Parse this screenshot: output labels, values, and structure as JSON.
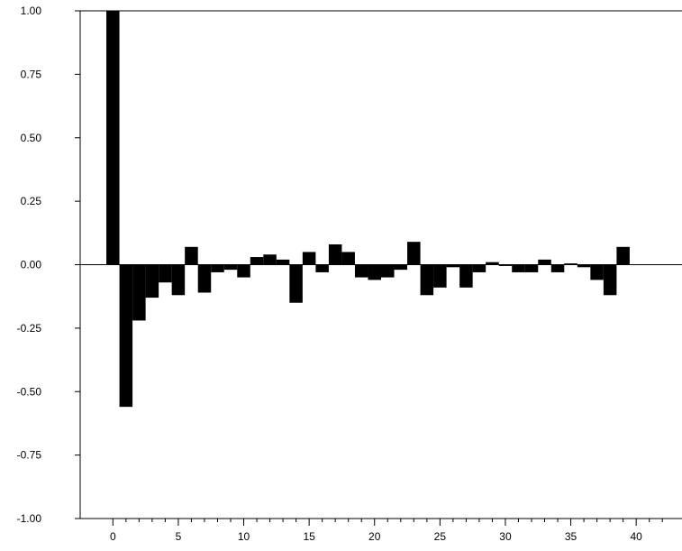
{
  "chart_data": {
    "type": "bar",
    "title": "",
    "xlabel": "",
    "ylabel": "",
    "x": [
      0,
      1,
      2,
      3,
      4,
      5,
      6,
      7,
      8,
      9,
      10,
      11,
      12,
      13,
      14,
      15,
      16,
      17,
      18,
      19,
      20,
      21,
      22,
      23,
      24,
      25,
      26,
      27,
      28,
      29,
      30,
      31,
      32,
      33,
      34,
      35,
      36,
      37,
      38,
      39
    ],
    "values": [
      1.0,
      -0.56,
      -0.22,
      -0.13,
      -0.07,
      -0.12,
      0.07,
      -0.11,
      -0.03,
      -0.02,
      -0.05,
      0.03,
      0.04,
      0.02,
      -0.15,
      0.05,
      -0.03,
      0.08,
      0.05,
      -0.05,
      -0.06,
      -0.05,
      -0.02,
      0.09,
      -0.12,
      -0.09,
      -0.01,
      -0.09,
      -0.03,
      0.01,
      -0.005,
      -0.03,
      -0.03,
      0.02,
      -0.03,
      0.005,
      -0.01,
      -0.06,
      -0.12,
      0.07
    ],
    "xlim": [
      -2.5,
      43.5
    ],
    "ylim": [
      -1.0,
      1.0
    ],
    "x_ticks": [
      "0",
      "5",
      "10",
      "15",
      "20",
      "25",
      "30",
      "35",
      "40"
    ],
    "y_ticks": [
      "1.00",
      "0.75",
      "0.50",
      "0.25",
      "0.00",
      "-0.25",
      "-0.50",
      "-0.75",
      "-1.00"
    ],
    "colors": {
      "bars": "#000000",
      "axes": "#000000"
    },
    "grid": false,
    "legend": "none"
  }
}
